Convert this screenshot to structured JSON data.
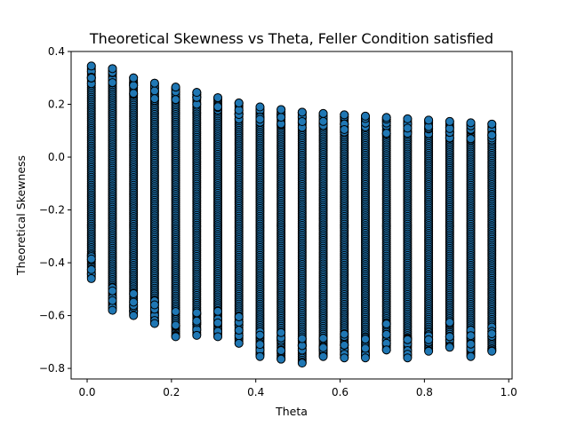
{
  "chart_data": {
    "type": "scatter",
    "title": "Theoretical Skewness vs Theta, Feller Condition satisfied",
    "xlabel": "Theta",
    "ylabel": "Theoretical Skewness",
    "xlim": [
      -0.038,
      1.008
    ],
    "ylim": [
      -0.84,
      0.4
    ],
    "xticks": [
      0.0,
      0.2,
      0.4,
      0.6,
      0.8,
      1.0
    ],
    "xtick_labels": [
      "0.0",
      "0.2",
      "0.4",
      "0.6",
      "0.8",
      "1.0"
    ],
    "yticks": [
      -0.8,
      -0.6,
      -0.4,
      -0.2,
      0.0,
      0.2,
      0.4
    ],
    "ytick_labels": [
      "−0.8",
      "−0.6",
      "−0.4",
      "−0.2",
      "0.0",
      "0.2",
      "0.4"
    ],
    "grid": false,
    "marker_color": "#1f77b4",
    "marker_edge_color": "#000000",
    "columns": [
      {
        "x": 0.01,
        "y_min": -0.46,
        "y_max": 0.345
      },
      {
        "x": 0.06,
        "y_min": -0.58,
        "y_max": 0.335
      },
      {
        "x": 0.11,
        "y_min": -0.6,
        "y_max": 0.3
      },
      {
        "x": 0.16,
        "y_min": -0.63,
        "y_max": 0.28
      },
      {
        "x": 0.21,
        "y_min": -0.68,
        "y_max": 0.265
      },
      {
        "x": 0.26,
        "y_min": -0.675,
        "y_max": 0.245
      },
      {
        "x": 0.31,
        "y_min": -0.68,
        "y_max": 0.225
      },
      {
        "x": 0.36,
        "y_min": -0.705,
        "y_max": 0.205
      },
      {
        "x": 0.41,
        "y_min": -0.755,
        "y_max": 0.19
      },
      {
        "x": 0.46,
        "y_min": -0.765,
        "y_max": 0.18
      },
      {
        "x": 0.51,
        "y_min": -0.78,
        "y_max": 0.17
      },
      {
        "x": 0.56,
        "y_min": -0.755,
        "y_max": 0.165
      },
      {
        "x": 0.61,
        "y_min": -0.76,
        "y_max": 0.16
      },
      {
        "x": 0.66,
        "y_min": -0.76,
        "y_max": 0.155
      },
      {
        "x": 0.71,
        "y_min": -0.73,
        "y_max": 0.15
      },
      {
        "x": 0.76,
        "y_min": -0.76,
        "y_max": 0.145
      },
      {
        "x": 0.81,
        "y_min": -0.735,
        "y_max": 0.14
      },
      {
        "x": 0.86,
        "y_min": -0.72,
        "y_max": 0.135
      },
      {
        "x": 0.91,
        "y_min": -0.755,
        "y_max": 0.13
      },
      {
        "x": 0.96,
        "y_min": -0.735,
        "y_max": 0.125
      }
    ]
  }
}
